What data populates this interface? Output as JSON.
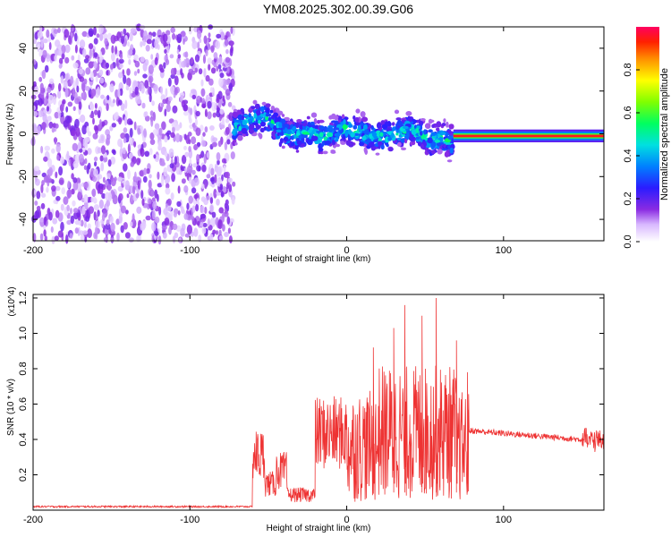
{
  "title": "YM08.2025.302.00.39.G06",
  "chart_data": [
    {
      "type": "heatmap",
      "xlabel": "Height of straight line (km)",
      "ylabel": "Frequency (Hz)",
      "xlim": [
        -200,
        164
      ],
      "ylim": [
        -50,
        50
      ],
      "x_ticks": [
        -200,
        -100,
        0,
        100
      ],
      "y_ticks": [
        -40,
        -20,
        0,
        20,
        40
      ],
      "colorbar": {
        "label": "Normalized spectral amplitude",
        "range": [
          0,
          1
        ],
        "ticks": [
          "0.0",
          "0.2",
          "0.4",
          "0.6",
          "0.8"
        ],
        "colormap": "hsv-like: white/purple (0) → blue → cyan → green → yellow → orange → red (1)"
      },
      "regions": [
        {
          "x_range": [
            -200,
            -72
          ],
          "description": "broadband low-amplitude noise",
          "freq_range": [
            -50,
            50
          ],
          "amplitude": 0.1
        },
        {
          "x_range": [
            -72,
            68
          ],
          "description": "fluctuating narrow band",
          "center_freq": [
            3,
            5,
            7,
            8,
            2,
            0,
            -1,
            1,
            -2,
            0,
            3,
            1,
            0,
            -2,
            -1,
            1,
            2,
            0,
            -3,
            -2,
            -4
          ],
          "width_hz": 8,
          "peak_amplitude": 0.5
        },
        {
          "x_range": [
            68,
            164
          ],
          "description": "stable narrow band near 0 Hz",
          "center_freq": -1,
          "width_hz": 4,
          "peak_amplitude": 0.95
        }
      ]
    },
    {
      "type": "line",
      "xlabel": "Height of straight line (km)",
      "ylabel": "SNR (10 * v/v)",
      "y_multiplier": "(x10^4)",
      "xlim": [
        -200,
        164
      ],
      "ylim": [
        0,
        1.22
      ],
      "x_ticks": [
        -200,
        -100,
        0,
        100
      ],
      "y_ticks": [
        0.2,
        0.4,
        0.6,
        0.8,
        1.0,
        1.2
      ],
      "color": "#ee3333",
      "segments": [
        {
          "x_range": [
            -200,
            -60
          ],
          "level": 0.02
        },
        {
          "x_range": [
            -60,
            -52
          ],
          "level": 0.25
        },
        {
          "x_range": [
            -52,
            -45
          ],
          "level": 0.12
        },
        {
          "x_range": [
            -45,
            -38
          ],
          "level": 0.18
        },
        {
          "x_range": [
            -38,
            -20
          ],
          "level": 0.07
        },
        {
          "x_range": [
            -20,
            0
          ],
          "level": 0.35
        },
        {
          "x_range": [
            0,
            20
          ],
          "level": 0.45
        },
        {
          "x_range": [
            20,
            70
          ],
          "level": 0.55
        },
        {
          "x_range": [
            70,
            78
          ],
          "level": 0.45
        },
        {
          "x_range": [
            78,
            164
          ],
          "level": 0.45
        }
      ],
      "peaks": [
        {
          "x": 17,
          "y": 0.92
        },
        {
          "x": 30,
          "y": 1.03
        },
        {
          "x": 37,
          "y": 1.16
        },
        {
          "x": 48,
          "y": 1.1
        },
        {
          "x": 57,
          "y": 1.2
        },
        {
          "x": 70,
          "y": 0.96
        },
        {
          "x": 77,
          "y": 0.78
        }
      ]
    }
  ]
}
